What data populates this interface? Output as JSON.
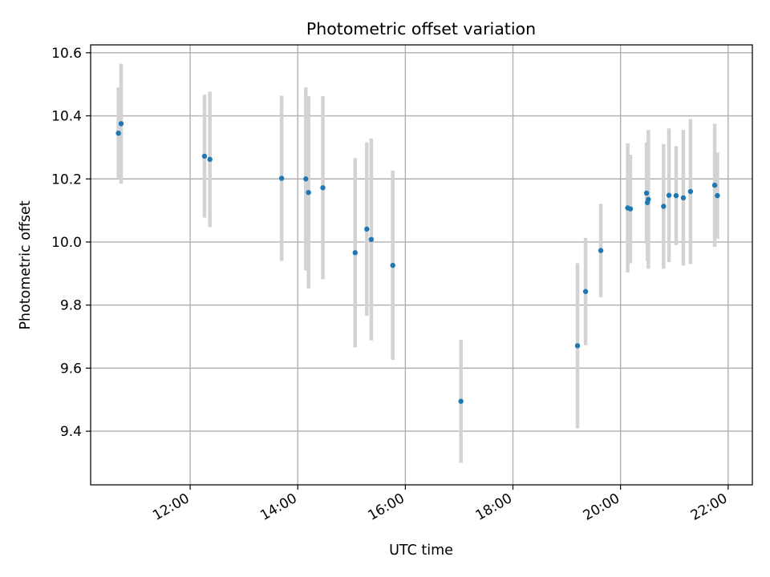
{
  "chart_data": {
    "type": "scatter",
    "title": "Photometric offset variation",
    "xlabel": "UTC time",
    "ylabel": "Photometric offset",
    "x_tick_labels": [
      "12:00",
      "14:00",
      "16:00",
      "18:00",
      "20:00",
      "22:00"
    ],
    "x_ticks": [
      "12:00",
      "14:00",
      "16:00",
      "18:00",
      "20:00",
      "22:00"
    ],
    "xlim": [
      "10:09",
      "22:27"
    ],
    "y_ticks": [
      9.4,
      9.6,
      9.8,
      10.0,
      10.2,
      10.4,
      10.6
    ],
    "y_tick_labels": [
      "9.4",
      "9.6",
      "9.8",
      "10.0",
      "10.2",
      "10.4",
      "10.6"
    ],
    "ylim": [
      9.23,
      10.625
    ],
    "grid": true,
    "colors": {
      "point": "#1f77b4",
      "errorbar": "#d3d3d3",
      "grid": "#b0b0b0"
    },
    "series": [
      {
        "points": [
          {
            "x": "10:40",
            "y": 10.345,
            "err": 0.145
          },
          {
            "x": "10:43",
            "y": 10.375,
            "err": 0.19
          },
          {
            "x": "12:16",
            "y": 10.272,
            "err": 0.195
          },
          {
            "x": "12:22",
            "y": 10.262,
            "err": 0.215
          },
          {
            "x": "13:42",
            "y": 10.202,
            "err": 0.262
          },
          {
            "x": "14:09",
            "y": 10.2,
            "err": 0.29
          },
          {
            "x": "14:12",
            "y": 10.157,
            "err": 0.305
          },
          {
            "x": "14:28",
            "y": 10.172,
            "err": 0.29
          },
          {
            "x": "15:04",
            "y": 9.966,
            "err": 0.3
          },
          {
            "x": "15:17",
            "y": 10.041,
            "err": 0.275
          },
          {
            "x": "15:22",
            "y": 10.008,
            "err": 0.32
          },
          {
            "x": "15:46",
            "y": 9.926,
            "err": 0.3
          },
          {
            "x": "17:02",
            "y": 9.495,
            "err": 0.195
          },
          {
            "x": "19:12",
            "y": 9.671,
            "err": 0.262
          },
          {
            "x": "19:21",
            "y": 9.843,
            "err": 0.17
          },
          {
            "x": "19:38",
            "y": 9.973,
            "err": 0.148
          },
          {
            "x": "20:08",
            "y": 10.108,
            "err": 0.205
          },
          {
            "x": "20:11",
            "y": 10.105,
            "err": 0.172
          },
          {
            "x": "20:29",
            "y": 10.155,
            "err": 0.16
          },
          {
            "x": "20:30",
            "y": 10.125,
            "err": 0.185
          },
          {
            "x": "20:31",
            "y": 10.135,
            "err": 0.22
          },
          {
            "x": "20:48",
            "y": 10.113,
            "err": 0.198
          },
          {
            "x": "20:54",
            "y": 10.148,
            "err": 0.212
          },
          {
            "x": "21:02",
            "y": 10.147,
            "err": 0.157
          },
          {
            "x": "21:10",
            "y": 10.14,
            "err": 0.215
          },
          {
            "x": "21:18",
            "y": 10.16,
            "err": 0.23
          },
          {
            "x": "21:45",
            "y": 10.18,
            "err": 0.195
          },
          {
            "x": "21:48",
            "y": 10.147,
            "err": 0.137
          }
        ]
      }
    ]
  }
}
